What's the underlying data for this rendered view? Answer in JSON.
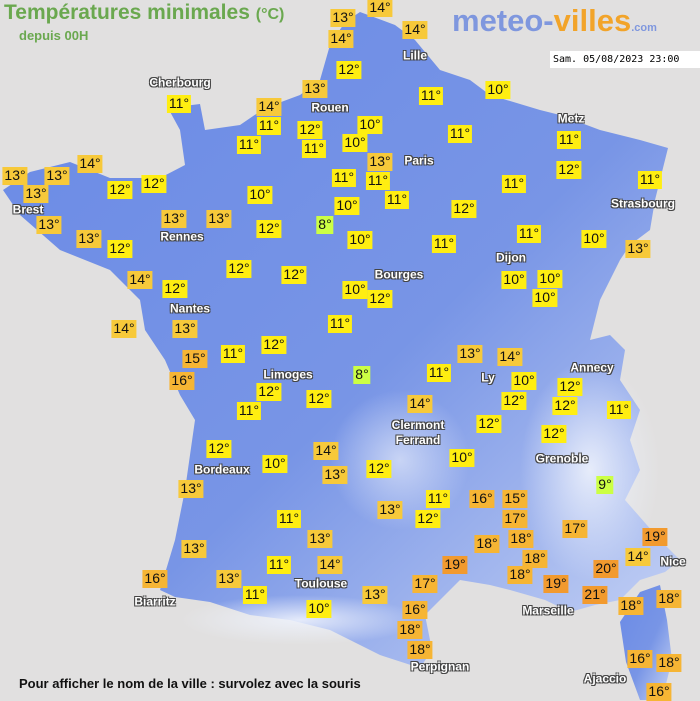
{
  "header": {
    "title": "Températures minimales",
    "unit": "(°C)",
    "subtitle": "depuis 00H"
  },
  "logo": {
    "part1": "meteo-",
    "part2": "villes",
    "part3": ".com"
  },
  "timestamp": "Sam. 05/08/2023 23:00",
  "footer": "Pour afficher le nom de la ville : survolez avec la souris",
  "color_scale": {
    "8-9": "#ccff44",
    "10-12": "#ffee11",
    "13-14": "#f7c93a",
    "15-18": "#f6b534",
    "19-21": "#f29a2e"
  },
  "map_colors": {
    "sea": "#e1e0e0",
    "land": "#6d8de6",
    "mountains": "#dfe6f8"
  },
  "cities": [
    "Cherbourg",
    "Rouen",
    "Lille",
    "Paris",
    "Metz",
    "Strasbourg",
    "Brest",
    "Rennes",
    "Nantes",
    "Bourges",
    "Dijon",
    "Limoges",
    "Ly",
    "Annecy",
    "Clermont\nFerrand",
    "Grenoble",
    "Bordeaux",
    "Nice",
    "Toulouse",
    "Biarritz",
    "Marseille",
    "Perpignan",
    "Ajaccio"
  ],
  "temperatures": [
    "13°",
    "14°",
    "14°",
    "14°",
    "12°",
    "13°",
    "11°",
    "14°",
    "11°",
    "12°",
    "11°",
    "11°",
    "10°",
    "10°",
    "13°",
    "11°",
    "11°",
    "11°",
    "10°",
    "10°",
    "11°",
    "10°",
    "11°",
    "11°",
    "12°",
    "11°",
    "11°",
    "11°",
    "12°",
    "11°",
    "10°",
    "13°",
    "13°",
    "13°",
    "13°",
    "14°",
    "12°",
    "12°",
    "13°",
    "13°",
    "12°",
    "13°",
    "13°",
    "10°",
    "12°",
    "8°",
    "14°",
    "12°",
    "12°",
    "12°",
    "14°",
    "13°",
    "10°",
    "12°",
    "10°",
    "10°",
    "10°",
    "11°",
    "15°",
    "11°",
    "12°",
    "16°",
    "12°",
    "11°",
    "12°",
    "8°",
    "13°",
    "14°",
    "11°",
    "10°",
    "12°",
    "12°",
    "12°",
    "11°",
    "14°",
    "12°",
    "12°",
    "10°",
    "12°",
    "10°",
    "14°",
    "13°",
    "12°",
    "9°",
    "13°",
    "11°",
    "13°",
    "11°",
    "12°",
    "16°",
    "15°",
    "17°",
    "17°",
    "13°",
    "18°",
    "18°",
    "19°",
    "14°",
    "13°",
    "11°",
    "14°",
    "18°",
    "19°",
    "20°",
    "18°",
    "19°",
    "16°",
    "13°",
    "11°",
    "17°",
    "13°",
    "21°",
    "18°",
    "18°",
    "10°",
    "16°",
    "18°",
    "18°",
    "16°",
    "18°",
    "16°"
  ]
}
